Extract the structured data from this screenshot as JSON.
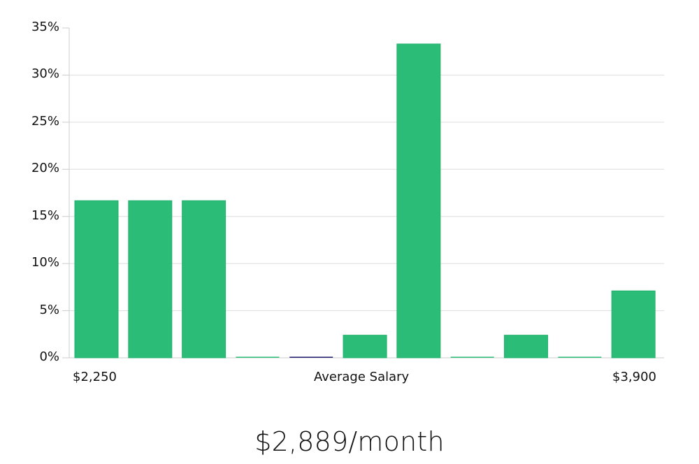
{
  "chart_data": {
    "type": "bar",
    "title": "$2,889/month",
    "xlabel": "Average Salary",
    "ylabel": "",
    "x_start_label": "$2,250",
    "x_end_label": "$3,900",
    "ylim": [
      0,
      35
    ],
    "y_ticks": [
      "0%",
      "5%",
      "10%",
      "15%",
      "20%",
      "25%",
      "30%",
      "35%"
    ],
    "grid": true,
    "bins": 11,
    "values": [
      16.67,
      16.67,
      16.67,
      0,
      0,
      2.4,
      33.3,
      0,
      2.4,
      0,
      7.1
    ],
    "highlighted_bin": 4,
    "colors": {
      "bar": "#2bbd77",
      "bar_border": "#22b06c",
      "highlight": "#1f1a6e",
      "grid": "#dddddd",
      "axis": "#cccccc"
    }
  },
  "labels": {
    "x_start": "$2,250",
    "x_center": "Average Salary",
    "x_end": "$3,900",
    "summary": "$2,889/month"
  }
}
